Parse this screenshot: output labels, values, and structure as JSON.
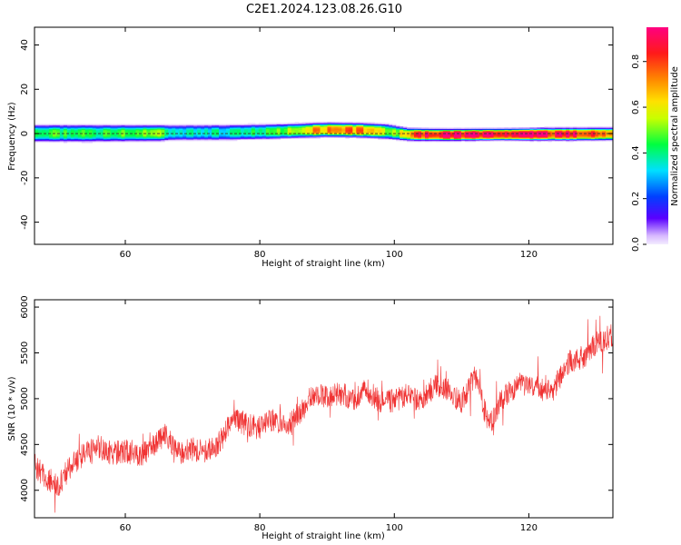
{
  "title": "C2E1.2024.123.08.26.G10",
  "chart_data": [
    {
      "type": "heatmap",
      "xlabel": "Height of straight line (km)",
      "ylabel": "Frequency (Hz)",
      "xlim": [
        46.5,
        132.5
      ],
      "ylim": [
        -50,
        48
      ],
      "xticks": [
        60,
        80,
        100,
        120
      ],
      "yticks": [
        -40,
        -20,
        0,
        20,
        40
      ],
      "colorbar": {
        "label": "Normalized spectral amplitude",
        "range": [
          0,
          0.95
        ],
        "ticks": [
          0.0,
          0.2,
          0.4,
          0.6,
          0.8
        ],
        "colormap": "rainbow"
      },
      "band_profile": {
        "x": [
          46.5,
          55,
          65,
          67,
          75,
          82,
          86,
          90,
          95,
          99,
          102,
          104,
          108,
          112,
          116,
          120,
          123,
          126,
          132.5
        ],
        "center_hz": [
          0.2,
          0.2,
          0.3,
          0.5,
          0.6,
          1.0,
          1.4,
          1.8,
          1.6,
          1.0,
          -0.3,
          -0.4,
          -0.5,
          -0.4,
          -0.3,
          -0.3,
          -0.2,
          -0.2,
          -0.1
        ],
        "halfwidth_hz": [
          4.0,
          4.0,
          3.8,
          3.6,
          3.6,
          3.5,
          3.4,
          3.4,
          3.4,
          3.5,
          3.0,
          2.9,
          2.8,
          2.8,
          2.8,
          2.9,
          3.0,
          3.0,
          3.0
        ],
        "peak_amplitude": [
          0.45,
          0.42,
          0.5,
          0.34,
          0.36,
          0.42,
          0.6,
          0.72,
          0.7,
          0.5,
          0.6,
          0.85,
          0.95,
          0.88,
          0.86,
          0.93,
          0.83,
          0.86,
          0.7
        ]
      }
    },
    {
      "type": "line",
      "xlabel": "Height of straight line (km)",
      "ylabel": "SNR (10 * v/v)",
      "xlim": [
        46.5,
        132.5
      ],
      "ylim": [
        3700,
        6080
      ],
      "xticks": [
        60,
        80,
        100,
        120
      ],
      "yticks": [
        4000,
        4500,
        5000,
        5500,
        6000
      ],
      "series": [
        {
          "color": "#f03232",
          "x": [
            46.5,
            48,
            50,
            52,
            54,
            56,
            58,
            60,
            62,
            64,
            66,
            68,
            70,
            72,
            74,
            76,
            78,
            80,
            82,
            84,
            86,
            88,
            90,
            92,
            94,
            96,
            98,
            100,
            102,
            104,
            106,
            108,
            110,
            112,
            114,
            116,
            118,
            120,
            122,
            124,
            126,
            128,
            130,
            132.5
          ],
          "values": [
            4280,
            4150,
            4050,
            4280,
            4400,
            4480,
            4400,
            4430,
            4380,
            4450,
            4620,
            4400,
            4450,
            4420,
            4520,
            4800,
            4720,
            4680,
            4780,
            4720,
            4850,
            5050,
            5020,
            5050,
            5000,
            5100,
            4950,
            4980,
            5050,
            4950,
            5150,
            5100,
            4950,
            5250,
            4700,
            5000,
            5120,
            5150,
            5100,
            5150,
            5400,
            5450,
            5600,
            5700
          ],
          "noise_amplitude": 260
        }
      ]
    }
  ]
}
